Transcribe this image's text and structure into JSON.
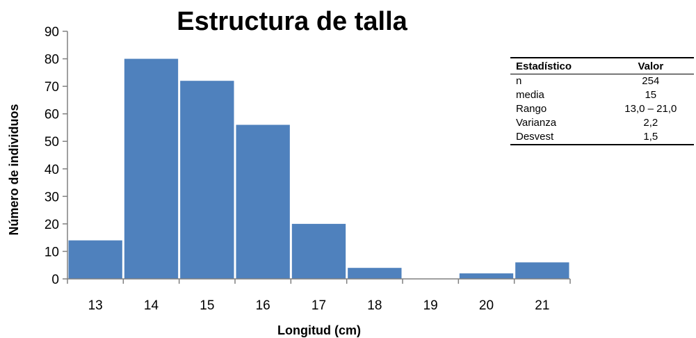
{
  "chart_data": {
    "type": "bar",
    "title": "Estructura de talla",
    "xlabel": "Longitud (cm)",
    "ylabel": "Número de individuos",
    "categories": [
      "13",
      "14",
      "15",
      "16",
      "17",
      "18",
      "19",
      "20",
      "21"
    ],
    "values": [
      14,
      80,
      72,
      56,
      20,
      4,
      0,
      2,
      6
    ],
    "ylim": [
      0,
      90
    ],
    "yticks": [
      0,
      10,
      20,
      30,
      40,
      50,
      60,
      70,
      80,
      90
    ],
    "grid": false,
    "bar_color": "#4F81BD"
  },
  "stats_table": {
    "headers": [
      "Estadístico",
      "Valor"
    ],
    "rows": [
      {
        "label": "n",
        "value": "254"
      },
      {
        "label": "media",
        "value": "15"
      },
      {
        "label": "Rango",
        "value": "13,0 – 21,0"
      },
      {
        "label": "Varianza",
        "value": "2,2"
      },
      {
        "label": "Desvest",
        "value": "1,5"
      }
    ]
  }
}
